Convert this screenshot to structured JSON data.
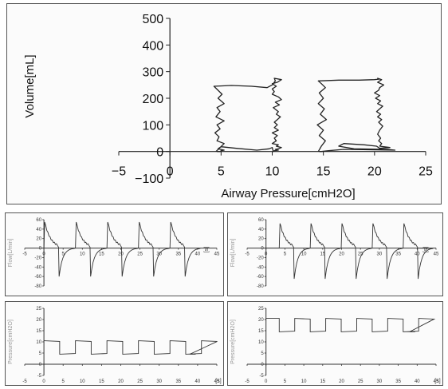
{
  "chart_data": [
    {
      "type": "line",
      "xlabel": "Airway Pressure[cmH2O]",
      "ylabel": "Volume[mL]",
      "xlim": [
        -5,
        25
      ],
      "ylim": [
        -100,
        500
      ],
      "x_ticks": [
        "−5",
        "0",
        "5",
        "10",
        "15",
        "20",
        "25"
      ],
      "y_ticks": [
        "500",
        "400",
        "300",
        "200",
        "100",
        "0",
        "−100"
      ],
      "grid": false,
      "series": [
        {
          "x": [
            4.5,
            4.9,
            5.3,
            4.6,
            4.8,
            4.4,
            4.9,
            4.6,
            5.3,
            4.5,
            4.9,
            4.6,
            5.3,
            4.7,
            5.1,
            4.3,
            6.0,
            8.0,
            9.5,
            10.0,
            10.3,
            10.2,
            10.9,
            10.5,
            10.0,
            10.4,
            10.0,
            10.2,
            10.0,
            10.6,
            10.9,
            10.3,
            10.7,
            10.1,
            10.6,
            10.4,
            10.8,
            10.5,
            10.2,
            10.5,
            10.2,
            10.6,
            10.0,
            10.5,
            10.2,
            10.4,
            10.0,
            10.6,
            10.4,
            10.9,
            10.6,
            10.3,
            10.6,
            10.2,
            10.1,
            10.0,
            9.7,
            8.5,
            6.5,
            5.0,
            4.7,
            5.3,
            5.0,
            4.9,
            4.6
          ],
          "y": [
            0,
            15,
            30,
            40,
            55,
            70,
            85,
            100,
            115,
            130,
            150,
            165,
            180,
            200,
            215,
            245,
            248,
            245,
            240,
            250,
            265,
            275,
            270,
            260,
            255,
            245,
            235,
            225,
            215,
            205,
            195,
            185,
            175,
            165,
            150,
            140,
            130,
            120,
            110,
            100,
            90,
            80,
            70,
            60,
            50,
            40,
            30,
            25,
            20,
            15,
            10,
            8,
            5,
            3,
            0,
            15,
            10,
            5,
            12,
            18,
            10,
            5,
            3,
            0,
            0
          ]
        },
        {
          "x": [
            14.5,
            14.8,
            15.2,
            14.6,
            15.0,
            14.4,
            15.3,
            14.7,
            15.1,
            14.5,
            15.0,
            14.6,
            15.2,
            14.8,
            14.5,
            16.5,
            18.5,
            20.0,
            20.5,
            20.3,
            20.7,
            20.3,
            20.9,
            20.5,
            20.4,
            20.0,
            20.5,
            20.1,
            20.6,
            20.3,
            20.8,
            20.5,
            20.2,
            20.6,
            20.3,
            20.7,
            20.4,
            20.8,
            20.5,
            20.3,
            20.6,
            20.4,
            20.7,
            20.5,
            21.5,
            20.5,
            20.2,
            19.0,
            17.0,
            16.5,
            18.0,
            21.3,
            22.0,
            17.0,
            15.5,
            14.8,
            14.6
          ],
          "y": [
            0,
            20,
            40,
            60,
            80,
            100,
            120,
            140,
            160,
            180,
            200,
            220,
            240,
            255,
            265,
            268,
            268,
            270,
            272,
            275,
            270,
            260,
            250,
            240,
            230,
            220,
            210,
            200,
            190,
            180,
            170,
            160,
            150,
            140,
            130,
            120,
            110,
            95,
            80,
            65,
            50,
            40,
            30,
            20,
            15,
            12,
            20,
            25,
            30,
            20,
            10,
            8,
            5,
            8,
            3,
            0,
            0
          ]
        }
      ]
    },
    {
      "type": "line",
      "xlim": [
        -5,
        45
      ],
      "ylim": [
        -80,
        60
      ],
      "x_ticks": [
        "-5",
        "0",
        "5",
        "10",
        "15",
        "20",
        "25",
        "30",
        "35",
        "40",
        "45"
      ],
      "y_ticks": [
        "60",
        "40",
        "20",
        "0",
        "-20",
        "-40",
        "-60",
        "-80"
      ],
      "xlabel": "[s]",
      "ylabel": "Flow[L/min]",
      "pattern": "flow",
      "period": 8.2,
      "start": 0.0,
      "series": [
        {
          "cycles": 5,
          "insp_peak": 55,
          "exp_peak": -60
        }
      ]
    },
    {
      "type": "line",
      "xlim": [
        -5,
        45
      ],
      "ylim": [
        -80,
        60
      ],
      "x_ticks": [
        "-5",
        "0",
        "5",
        "10",
        "15",
        "20",
        "25",
        "30",
        "35",
        "40",
        "45"
      ],
      "y_ticks": [
        "60",
        "40",
        "20",
        "0",
        "-20",
        "-40",
        "-60",
        "-80"
      ],
      "xlabel": "[s]",
      "ylabel": "Flow[L/min]",
      "pattern": "flow",
      "period": 8.2,
      "start": 3.5,
      "series": [
        {
          "cycles": 5,
          "insp_peak": 52,
          "exp_peak": -65
        }
      ]
    },
    {
      "type": "line",
      "xlim": [
        -5,
        45
      ],
      "ylim": [
        -5,
        25
      ],
      "x_ticks": [
        "-5",
        "0",
        "5",
        "10",
        "15",
        "20",
        "25",
        "30",
        "35",
        "40",
        "45"
      ],
      "y_ticks": [
        "25",
        "20",
        "15",
        "10",
        "5",
        "0",
        "-5"
      ],
      "xlabel": "[s]",
      "ylabel": "Pressure[cmH2O]",
      "pattern": "pressure",
      "period": 8.2,
      "start": 0.0,
      "series": [
        {
          "cycles": 5,
          "high": 10.5,
          "low": 4.5
        }
      ]
    },
    {
      "type": "line",
      "xlim": [
        -5,
        45
      ],
      "ylim": [
        -5,
        25
      ],
      "x_ticks": [
        "-5",
        "0",
        "5",
        "10",
        "15",
        "20",
        "25",
        "30",
        "35",
        "40",
        "45"
      ],
      "y_ticks": [
        "25",
        "20",
        "15",
        "10",
        "5",
        "0",
        "-5"
      ],
      "xlabel": "[s]",
      "ylabel": "Pressure[cmH2O]",
      "pattern": "pressure",
      "period": 8.2,
      "start": 3.5,
      "series": [
        {
          "cycles": 5,
          "high": 20.5,
          "low": 14.5
        }
      ]
    }
  ]
}
